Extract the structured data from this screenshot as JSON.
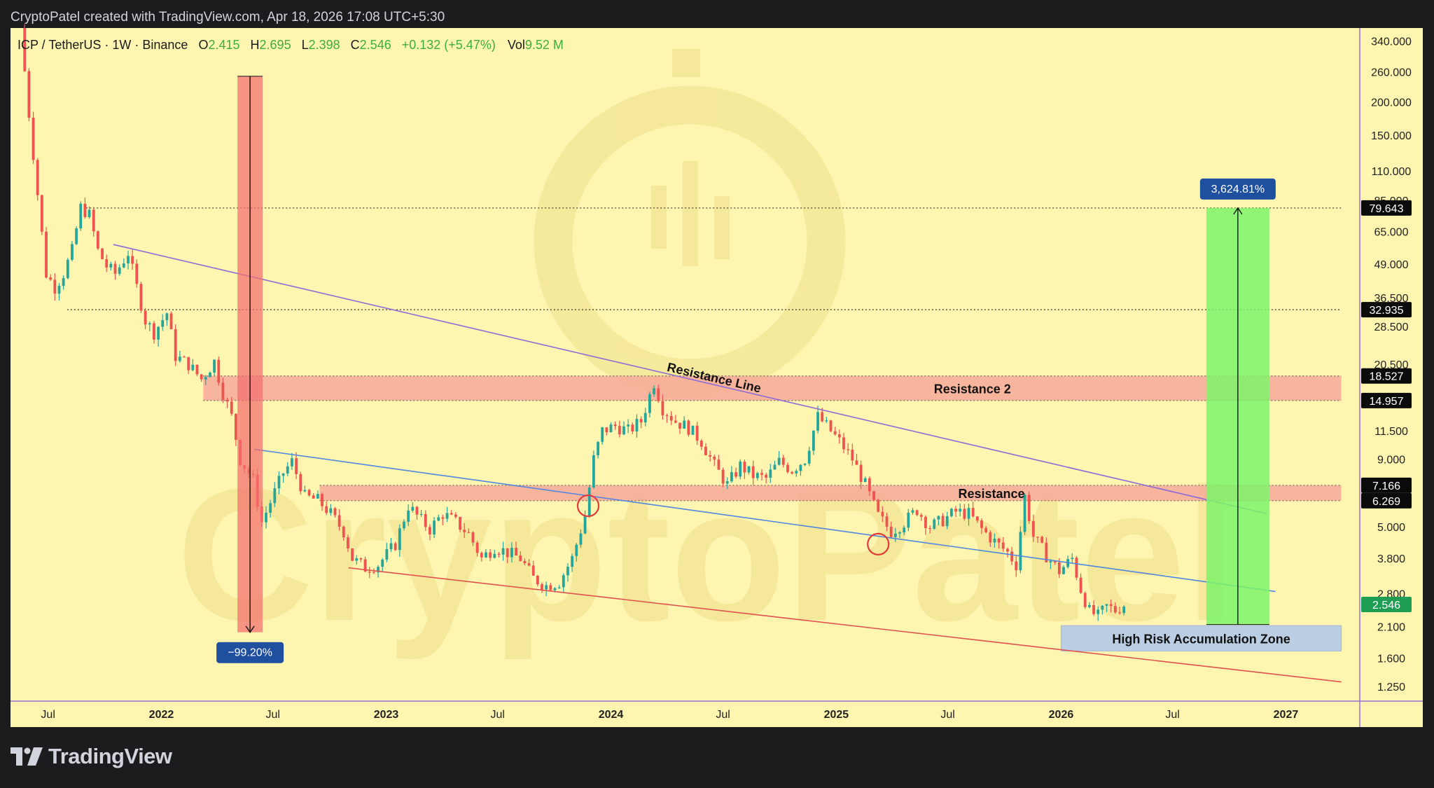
{
  "header": {
    "credit": "CryptoPatel created with TradingView.com, Apr 18, 2026 17:08 UTC+5:30"
  },
  "legend": {
    "symbol": "ICP / TetherUS · 1W · Binance",
    "o_label": "O",
    "o_value": "2.415",
    "h_label": "H",
    "h_value": "2.695",
    "l_label": "L",
    "l_value": "2.398",
    "c_label": "C",
    "c_value": "2.546",
    "change": "+0.132 (+5.47%)",
    "vol_label": "Vol",
    "vol_value": "9.52 M"
  },
  "watermark": "CryptoPatel",
  "footer": {
    "brand": "TradingView"
  },
  "colors": {
    "plot_bg": "#fdf5b0",
    "up": "#26a69a",
    "down": "#ef5350",
    "resistance_zone": "#f7a99a",
    "accumulation_zone": "#b8cce6",
    "target_box": "#7df56a",
    "drop_box": "#f26f6f",
    "resistance_line": "#8e6bd6",
    "channel_mid": "#4f86e0",
    "channel_low": "#e0524f",
    "badge_blue": "#1f4f9f",
    "price_badge": "#1e9e55"
  },
  "chart_data": {
    "type": "candlestick",
    "symbol": "ICP / TetherUS",
    "timeframe": "1W",
    "exchange": "Binance",
    "y_scale": "log",
    "ylim": [
      1.1,
      380
    ],
    "xlim": [
      "2021-05-01",
      "2027-05-01"
    ],
    "x_ticks": [
      {
        "label": "Jul",
        "date": "2021-07-01",
        "bold": false
      },
      {
        "label": "2022",
        "date": "2022-01-01",
        "bold": true
      },
      {
        "label": "Jul",
        "date": "2022-07-01",
        "bold": false
      },
      {
        "label": "2023",
        "date": "2023-01-01",
        "bold": true
      },
      {
        "label": "Jul",
        "date": "2023-07-01",
        "bold": false
      },
      {
        "label": "2024",
        "date": "2024-01-01",
        "bold": true
      },
      {
        "label": "Jul",
        "date": "2024-07-01",
        "bold": false
      },
      {
        "label": "2025",
        "date": "2025-01-01",
        "bold": true
      },
      {
        "label": "Jul",
        "date": "2025-07-01",
        "bold": false
      },
      {
        "label": "2026",
        "date": "2026-01-01",
        "bold": true
      },
      {
        "label": "Jul",
        "date": "2026-07-01",
        "bold": false
      },
      {
        "label": "2027",
        "date": "2027-01-01",
        "bold": true
      }
    ],
    "y_ticks": [
      {
        "label": "340.000",
        "value": 340
      },
      {
        "label": "260.000",
        "value": 260
      },
      {
        "label": "200.000",
        "value": 200
      },
      {
        "label": "150.000",
        "value": 150
      },
      {
        "label": "110.000",
        "value": 110
      },
      {
        "label": "85.000",
        "value": 85
      },
      {
        "label": "65.000",
        "value": 65
      },
      {
        "label": "49.000",
        "value": 49
      },
      {
        "label": "36.500",
        "value": 36.5
      },
      {
        "label": "28.500",
        "value": 28.5
      },
      {
        "label": "20.500",
        "value": 20.5
      },
      {
        "label": "11.500",
        "value": 11.5
      },
      {
        "label": "9.000",
        "value": 9
      },
      {
        "label": "5.000",
        "value": 5
      },
      {
        "label": "3.800",
        "value": 3.8
      },
      {
        "label": "2.800",
        "value": 2.8
      },
      {
        "label": "2.100",
        "value": 2.1
      },
      {
        "label": "1.600",
        "value": 1.6
      },
      {
        "label": "1.250",
        "value": 1.25
      }
    ],
    "price_markers": [
      {
        "label": "79.643",
        "value": 79.643,
        "style": "dark"
      },
      {
        "label": "32.935",
        "value": 32.935,
        "style": "dark"
      },
      {
        "label": "18.527",
        "value": 18.527,
        "style": "dark"
      },
      {
        "label": "14.957",
        "value": 14.957,
        "style": "dark"
      },
      {
        "label": "7.166",
        "value": 7.166,
        "style": "dark"
      },
      {
        "label": "6.269",
        "value": 6.269,
        "style": "dark"
      },
      {
        "label": "2.546",
        "value": 2.546,
        "style": "green"
      }
    ],
    "horizontal_levels": [
      {
        "value": 79.643,
        "from": "2021-09-01",
        "to": "2027-04-01"
      },
      {
        "value": 32.935,
        "from": "2021-08-01",
        "to": "2027-04-01"
      }
    ],
    "zones": [
      {
        "name": "Resistance 2",
        "low": 14.957,
        "high": 18.527,
        "from": "2022-03-10",
        "to": "2027-04-01"
      },
      {
        "name": "Resistance",
        "low": 6.269,
        "high": 7.166,
        "from": "2022-09-15",
        "to": "2027-04-01"
      },
      {
        "name": "High Risk Accumulation Zone",
        "low": 1.7,
        "high": 2.12,
        "from": "2026-01-01",
        "to": "2027-04-01"
      }
    ],
    "trendlines": [
      {
        "name": "Resistance Line",
        "from": [
          "2021-10-15",
          58
        ],
        "to": [
          "2026-12-01",
          5.6
        ]
      },
      {
        "name": "",
        "from": [
          "2022-06-01",
          9.8
        ],
        "to": [
          "2026-12-15",
          2.85
        ]
      },
      {
        "name": "",
        "from": [
          "2022-11-01",
          3.5
        ],
        "to": [
          "2027-04-01",
          1.3
        ]
      }
    ],
    "measures": [
      {
        "label": "−99.20%",
        "date": "2022-05-25",
        "from": 250,
        "to": 2.0
      },
      {
        "label": "3,624.81%",
        "date": "2026-10-15",
        "from": 2.14,
        "to": 79.643
      }
    ],
    "annotations": [
      {
        "text": "Resistance 2"
      },
      {
        "text": "Resistance"
      },
      {
        "text": "Resistance Line"
      },
      {
        "text": "High Risk Accumulation Zone"
      }
    ],
    "circles": [
      {
        "date": "2023-11-25",
        "value": 6.0
      },
      {
        "date": "2025-03-10",
        "value": 4.3
      }
    ],
    "series_anchors": [
      [
        "2021-05-17",
        380
      ],
      [
        "2021-05-31",
        180
      ],
      [
        "2021-06-14",
        90
      ],
      [
        "2021-06-28",
        45
      ],
      [
        "2021-07-12",
        40
      ],
      [
        "2021-07-26",
        45
      ],
      [
        "2021-08-09",
        55
      ],
      [
        "2021-08-23",
        80
      ],
      [
        "2021-09-06",
        75
      ],
      [
        "2021-09-20",
        55
      ],
      [
        "2021-10-04",
        48
      ],
      [
        "2021-10-18",
        45
      ],
      [
        "2021-11-08",
        54
      ],
      [
        "2021-11-22",
        40
      ],
      [
        "2021-12-06",
        30
      ],
      [
        "2021-12-20",
        27
      ],
      [
        "2022-01-10",
        32
      ],
      [
        "2022-01-24",
        22
      ],
      [
        "2022-02-14",
        20.5
      ],
      [
        "2022-03-07",
        18
      ],
      [
        "2022-03-28",
        21
      ],
      [
        "2022-04-11",
        16
      ],
      [
        "2022-04-25",
        13
      ],
      [
        "2022-05-09",
        9
      ],
      [
        "2022-05-30",
        7.5
      ],
      [
        "2022-06-13",
        5.2
      ],
      [
        "2022-06-27",
        6.2
      ],
      [
        "2022-07-18",
        8.0
      ],
      [
        "2022-08-01",
        8.8
      ],
      [
        "2022-08-22",
        6.5
      ],
      [
        "2022-09-12",
        6.3
      ],
      [
        "2022-10-03",
        5.6
      ],
      [
        "2022-10-24",
        4.8
      ],
      [
        "2022-11-07",
        3.8
      ],
      [
        "2022-11-28",
        3.5
      ],
      [
        "2022-12-19",
        3.6
      ],
      [
        "2023-01-16",
        4.3
      ],
      [
        "2023-02-06",
        6.0
      ],
      [
        "2023-02-20",
        5.5
      ],
      [
        "2023-03-13",
        4.9
      ],
      [
        "2023-04-03",
        5.6
      ],
      [
        "2023-04-24",
        5.2
      ],
      [
        "2023-05-15",
        4.7
      ],
      [
        "2023-06-05",
        3.8
      ],
      [
        "2023-06-26",
        4.2
      ],
      [
        "2023-07-17",
        4.0
      ],
      [
        "2023-08-07",
        3.8
      ],
      [
        "2023-08-28",
        3.2
      ],
      [
        "2023-09-18",
        3.0
      ],
      [
        "2023-10-09",
        3.1
      ],
      [
        "2023-10-30",
        3.8
      ],
      [
        "2023-11-20",
        5.5
      ],
      [
        "2023-12-04",
        9.0
      ],
      [
        "2023-12-18",
        11.5
      ],
      [
        "2024-01-08",
        12.0
      ],
      [
        "2024-01-29",
        11.5
      ],
      [
        "2024-02-19",
        12.5
      ],
      [
        "2024-03-11",
        17.5
      ],
      [
        "2024-03-25",
        14.0
      ],
      [
        "2024-04-15",
        12.5
      ],
      [
        "2024-05-06",
        11.8
      ],
      [
        "2024-05-27",
        10.5
      ],
      [
        "2024-06-17",
        8.5
      ],
      [
        "2024-07-08",
        7.2
      ],
      [
        "2024-07-29",
        8.5
      ],
      [
        "2024-08-19",
        7.8
      ],
      [
        "2024-09-09",
        7.6
      ],
      [
        "2024-09-30",
        8.8
      ],
      [
        "2024-10-21",
        8.2
      ],
      [
        "2024-11-11",
        9.0
      ],
      [
        "2024-12-02",
        13.0
      ],
      [
        "2024-12-16",
        12.0
      ],
      [
        "2025-01-06",
        10.5
      ],
      [
        "2025-01-27",
        9.0
      ],
      [
        "2025-02-17",
        7.2
      ],
      [
        "2025-03-10",
        5.5
      ],
      [
        "2025-03-31",
        4.8
      ],
      [
        "2025-04-21",
        5.2
      ],
      [
        "2025-05-12",
        5.8
      ],
      [
        "2025-06-02",
        5.0
      ],
      [
        "2025-06-23",
        5.3
      ],
      [
        "2025-07-14",
        5.7
      ],
      [
        "2025-08-04",
        5.6
      ],
      [
        "2025-08-25",
        4.9
      ],
      [
        "2025-09-15",
        4.4
      ],
      [
        "2025-10-06",
        4.0
      ],
      [
        "2025-10-20",
        3.6
      ],
      [
        "2025-11-03",
        6.5
      ],
      [
        "2025-11-17",
        4.6
      ],
      [
        "2025-12-08",
        3.9
      ],
      [
        "2025-12-29",
        3.4
      ],
      [
        "2026-01-19",
        3.8
      ],
      [
        "2026-02-02",
        2.9
      ],
      [
        "2026-02-16",
        2.4
      ],
      [
        "2026-03-02",
        2.3
      ],
      [
        "2026-03-16",
        2.5
      ],
      [
        "2026-03-30",
        2.42
      ],
      [
        "2026-04-13",
        2.546
      ]
    ]
  }
}
